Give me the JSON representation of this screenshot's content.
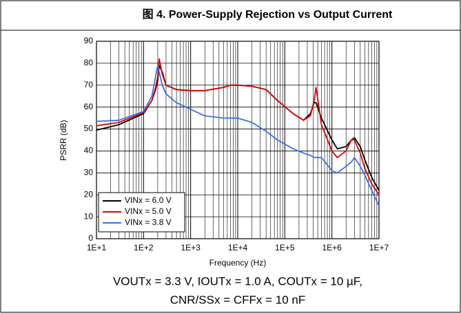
{
  "chart_data": {
    "type": "line",
    "title": "图 4. Power-Supply Rejection vs Output Current",
    "xlabel": "Frequency (Hz)",
    "ylabel": "PSRR (dB)",
    "annotations": [
      "VOUTx = 3.3 V, IOUTx = 1.0 A, COUTx = 10 µF,",
      "CNR/SSx = CFFx = 10 nF"
    ],
    "xscale": "log",
    "grid": true,
    "legend": "lower left",
    "xlim": [
      10,
      10000000
    ],
    "ylim": [
      0,
      90
    ],
    "xticks": [
      {
        "value": 10,
        "label": "1E+1"
      },
      {
        "value": 100,
        "label": "1E+2"
      },
      {
        "value": 1000,
        "label": "1E+3"
      },
      {
        "value": 10000,
        "label": "1E+4"
      },
      {
        "value": 100000,
        "label": "1E+5"
      },
      {
        "value": 1000000,
        "label": "1E+6"
      },
      {
        "value": 10000000,
        "label": "1E+7"
      }
    ],
    "yticks": [
      0,
      10,
      20,
      30,
      40,
      50,
      60,
      70,
      80,
      90
    ],
    "x": [
      10,
      30,
      100,
      150,
      180,
      200,
      215,
      250,
      300,
      500,
      1000,
      2000,
      5000,
      7000,
      10000,
      20000,
      40000,
      70000,
      150000,
      250000,
      350000,
      420000,
      460000,
      600000,
      1000000,
      1300000,
      2000000,
      2600000,
      3000000,
      4000000,
      5000000,
      7000000,
      10000000
    ],
    "series": [
      {
        "name": "VINx = 6.0 V",
        "color": "#000000",
        "values": [
          49.5,
          52,
          57,
          63,
          68,
          72,
          79,
          76,
          70,
          68,
          67.5,
          67.5,
          69,
          70,
          70,
          69.5,
          68,
          63,
          57,
          54,
          57,
          62,
          62,
          55,
          45,
          41,
          42,
          45,
          46,
          42,
          36,
          28,
          22
        ]
      },
      {
        "name": "VINx = 5.0 V",
        "color": "#e00000",
        "values": [
          51.5,
          53,
          57.5,
          63,
          69,
          74,
          82,
          75,
          70,
          68,
          67.5,
          67.5,
          69,
          70,
          70,
          69.5,
          68,
          63,
          57,
          54,
          56,
          63,
          69,
          52,
          40,
          37,
          40,
          45,
          45,
          39,
          32,
          25,
          20
        ]
      },
      {
        "name": "VINx = 3.8 V",
        "color": "#3a6ee8",
        "values": [
          53.5,
          54,
          58,
          65,
          74,
          79,
          76,
          70,
          66,
          62,
          59,
          56,
          55,
          55,
          55,
          53,
          49,
          45,
          41,
          39,
          38,
          37,
          37,
          37,
          31,
          30,
          33,
          35,
          37,
          33,
          29,
          22,
          15
        ]
      }
    ]
  }
}
